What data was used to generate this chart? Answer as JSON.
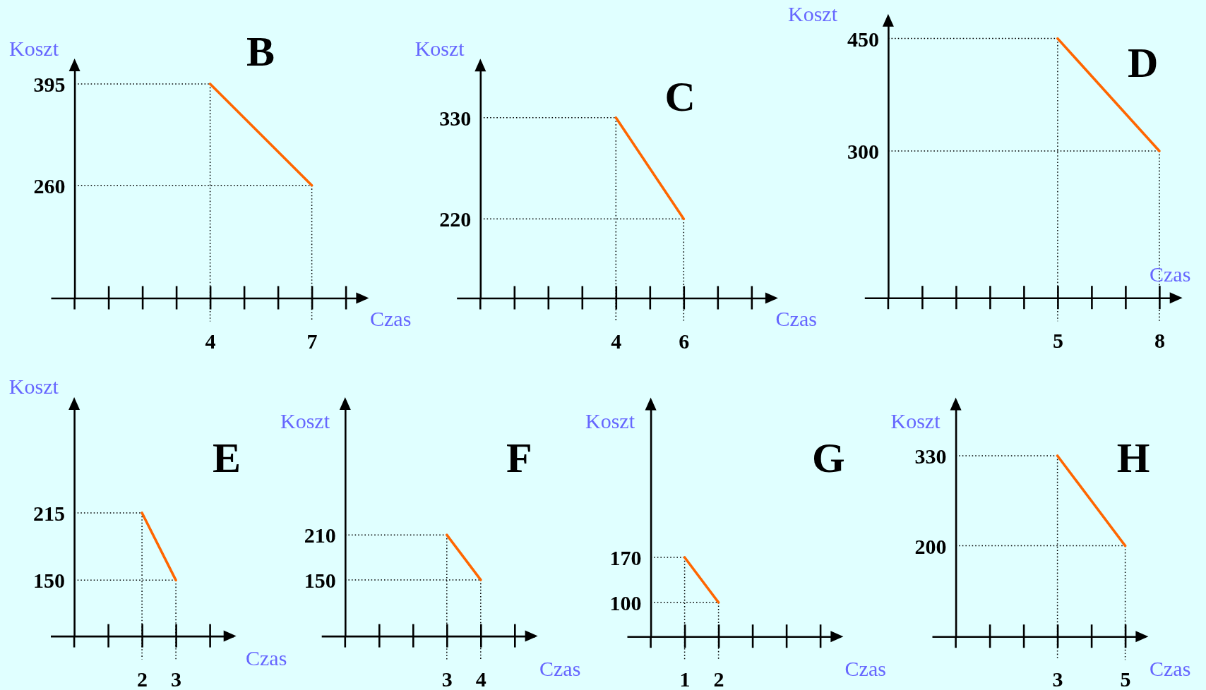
{
  "chart_data": [
    {
      "type": "line",
      "title": "B",
      "xlabel": "Czas",
      "ylabel": "Koszt",
      "x": [
        4,
        7
      ],
      "series": [
        {
          "color": "#ff6600",
          "values": [
            395,
            260
          ]
        }
      ],
      "xlim": [
        -0.7,
        8.6
      ],
      "ylim": [
        110,
        425
      ],
      "xticks": [
        {
          "value": 1,
          "label": null
        },
        {
          "value": 2,
          "label": null
        },
        {
          "value": 3,
          "label": null
        },
        4,
        {
          "value": 5,
          "label": null
        },
        {
          "value": 6,
          "label": null
        },
        7,
        {
          "value": 8,
          "label": null
        }
      ],
      "yticks": [
        260,
        395
      ],
      "ref_lines": [
        {
          "axis": "y",
          "value": 395,
          "color": "#000000",
          "line_style": "dotted"
        },
        {
          "axis": "y",
          "value": 260,
          "color": "#000000",
          "line_style": "dotted"
        },
        {
          "axis": "x",
          "value": 4,
          "color": "#000000",
          "line_style": "dotted"
        },
        {
          "axis": "x",
          "value": 7,
          "color": "#000000",
          "line_style": "dotted"
        }
      ]
    },
    {
      "type": "line",
      "title": "C",
      "xlabel": "Czas",
      "ylabel": "Koszt",
      "x": [
        4,
        6
      ],
      "series": [
        {
          "color": "#ff6600",
          "values": [
            330,
            220
          ]
        }
      ],
      "xlim": [
        -0.7,
        8.7
      ],
      "ylim": [
        134,
        391
      ],
      "xticks": [
        {
          "value": 1,
          "label": null
        },
        {
          "value": 2,
          "label": null
        },
        {
          "value": 3,
          "label": null
        },
        4,
        {
          "value": 5,
          "label": null
        },
        6,
        {
          "value": 7,
          "label": null
        },
        {
          "value": 8,
          "label": null
        }
      ],
      "yticks": [
        220,
        330
      ],
      "ref_lines": [
        {
          "axis": "y",
          "value": 330,
          "color": "#000000",
          "line_style": "dotted"
        },
        {
          "axis": "y",
          "value": 220,
          "color": "#000000",
          "line_style": "dotted"
        },
        {
          "axis": "x",
          "value": 4,
          "color": "#000000",
          "line_style": "dotted"
        },
        {
          "axis": "x",
          "value": 6,
          "color": "#000000",
          "line_style": "dotted"
        }
      ]
    },
    {
      "type": "line",
      "title": "D",
      "xlabel": "Czas",
      "ylabel": "Koszt",
      "x": [
        5,
        8
      ],
      "series": [
        {
          "color": "#ff6600",
          "values": [
            450,
            300
          ]
        }
      ],
      "xlim": [
        -0.7,
        8.6
      ],
      "ylim": [
        104,
        479
      ],
      "xticks": [
        {
          "value": 1,
          "label": null
        },
        {
          "value": 2,
          "label": null
        },
        {
          "value": 3,
          "label": null
        },
        {
          "value": 4,
          "label": null
        },
        5,
        {
          "value": 6,
          "label": null
        },
        {
          "value": 7,
          "label": null
        },
        8
      ],
      "yticks": [
        300,
        450
      ],
      "ref_lines": [
        {
          "axis": "y",
          "value": 450,
          "color": "#000000",
          "line_style": "dotted"
        },
        {
          "axis": "y",
          "value": 300,
          "color": "#000000",
          "line_style": "dotted"
        },
        {
          "axis": "x",
          "value": 5,
          "color": "#000000",
          "line_style": "dotted"
        },
        {
          "axis": "x",
          "value": 8,
          "color": "#000000",
          "line_style": "dotted"
        }
      ]
    },
    {
      "type": "line",
      "title": "E",
      "xlabel": "Czas",
      "ylabel": "Koszt",
      "x": [
        2,
        3
      ],
      "series": [
        {
          "color": "#ff6600",
          "values": [
            215,
            150
          ]
        }
      ],
      "xlim": [
        -0.7,
        4.7
      ],
      "ylim": [
        96,
        324
      ],
      "xticks": [
        {
          "value": 1,
          "label": null
        },
        2,
        3,
        {
          "value": 4,
          "label": null
        }
      ],
      "yticks": [
        150,
        215
      ],
      "ref_lines": [
        {
          "axis": "y",
          "value": 215,
          "color": "#000000",
          "line_style": "dotted"
        },
        {
          "axis": "y",
          "value": 150,
          "color": "#000000",
          "line_style": "dotted"
        },
        {
          "axis": "x",
          "value": 2,
          "color": "#000000",
          "line_style": "dotted"
        },
        {
          "axis": "x",
          "value": 3,
          "color": "#000000",
          "line_style": "dotted"
        }
      ]
    },
    {
      "type": "line",
      "title": "F",
      "xlabel": "Czas",
      "ylabel": "Koszt",
      "x": [
        3,
        4
      ],
      "series": [
        {
          "color": "#ff6600",
          "values": [
            210,
            150
          ]
        }
      ],
      "xlim": [
        -0.7,
        5.6
      ],
      "ylim": [
        75,
        390
      ],
      "xticks": [
        {
          "value": 1,
          "label": null
        },
        {
          "value": 2,
          "label": null
        },
        3,
        4,
        {
          "value": 5,
          "label": null
        }
      ],
      "yticks": [
        150,
        210
      ],
      "ref_lines": [
        {
          "axis": "y",
          "value": 210,
          "color": "#000000",
          "line_style": "dotted"
        },
        {
          "axis": "y",
          "value": 150,
          "color": "#000000",
          "line_style": "dotted"
        },
        {
          "axis": "x",
          "value": 3,
          "color": "#000000",
          "line_style": "dotted"
        },
        {
          "axis": "x",
          "value": 4,
          "color": "#000000",
          "line_style": "dotted"
        }
      ]
    },
    {
      "type": "line",
      "title": "G",
      "xlabel": "Czas",
      "ylabel": "Koszt",
      "x": [
        1,
        2
      ],
      "series": [
        {
          "color": "#ff6600",
          "values": [
            170,
            100
          ]
        }
      ],
      "xlim": [
        -0.7,
        5.6
      ],
      "ylim": [
        47,
        414
      ],
      "xticks": [
        1,
        2,
        {
          "value": 3,
          "label": null
        },
        {
          "value": 4,
          "label": null
        },
        {
          "value": 5,
          "label": null
        }
      ],
      "yticks": [
        100,
        170
      ],
      "ref_lines": [
        {
          "axis": "y",
          "value": 170,
          "color": "#000000",
          "line_style": "dotted"
        },
        {
          "axis": "y",
          "value": 100,
          "color": "#000000",
          "line_style": "dotted"
        },
        {
          "axis": "x",
          "value": 1,
          "color": "#000000",
          "line_style": "dotted"
        },
        {
          "axis": "x",
          "value": 2,
          "color": "#000000",
          "line_style": "dotted"
        }
      ]
    },
    {
      "type": "line",
      "title": "H",
      "xlabel": "Czas",
      "ylabel": "Koszt",
      "x": [
        3,
        5
      ],
      "series": [
        {
          "color": "#ff6600",
          "values": [
            330,
            200
          ]
        }
      ],
      "xlim": [
        -0.7,
        5.6
      ],
      "ylim": [
        69,
        410
      ],
      "xticks": [
        {
          "value": 1,
          "label": null
        },
        {
          "value": 2,
          "label": null
        },
        3,
        {
          "value": 4,
          "label": null
        },
        5
      ],
      "yticks": [
        200,
        330
      ],
      "ref_lines": [
        {
          "axis": "y",
          "value": 330,
          "color": "#000000",
          "line_style": "dotted"
        },
        {
          "axis": "y",
          "value": 200,
          "color": "#000000",
          "line_style": "dotted"
        },
        {
          "axis": "x",
          "value": 3,
          "color": "#000000",
          "line_style": "dotted"
        },
        {
          "axis": "x",
          "value": 5,
          "color": "#000000",
          "line_style": "dotted"
        }
      ]
    }
  ]
}
